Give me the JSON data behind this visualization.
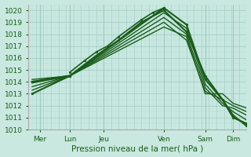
{
  "xlabel": "Pression niveau de la mer( hPa )",
  "ylim": [
    1010,
    1020.5
  ],
  "xlim": [
    0,
    290
  ],
  "yticks": [
    1010,
    1011,
    1012,
    1013,
    1014,
    1015,
    1016,
    1017,
    1018,
    1019,
    1020
  ],
  "xtick_labels": [
    "Mer",
    "Lun",
    "Jeu",
    "Ven",
    "Sam",
    "Dim"
  ],
  "xtick_positions": [
    15,
    55,
    100,
    180,
    235,
    272
  ],
  "day_vlines": [
    15,
    55,
    100,
    180,
    235,
    272
  ],
  "bg_color": "#c8e8e0",
  "grid_major_color": "#a0c8c0",
  "grid_minor_color": "#b8ddd8",
  "line_color_dark": "#1a5c1a",
  "line_color_med": "#2e7a2e",
  "figsize": [
    3.2,
    2.0
  ],
  "dpi": 100,
  "lines": [
    {
      "x": [
        5,
        55,
        180,
        210,
        235,
        258,
        272,
        290
      ],
      "y": [
        1013.0,
        1014.5,
        1020.2,
        1018.8,
        1014.2,
        1012.5,
        1011.2,
        1010.3
      ],
      "lw": 1.5,
      "marker": true
    },
    {
      "x": [
        5,
        55,
        180,
        210,
        235,
        258,
        272,
        290
      ],
      "y": [
        1013.3,
        1014.5,
        1019.8,
        1018.5,
        1013.8,
        1012.2,
        1011.5,
        1010.8
      ],
      "lw": 1.0,
      "marker": false
    },
    {
      "x": [
        5,
        55,
        180,
        210,
        235,
        258,
        272,
        290
      ],
      "y": [
        1013.6,
        1014.5,
        1019.4,
        1018.0,
        1013.5,
        1012.0,
        1011.8,
        1011.2
      ],
      "lw": 1.0,
      "marker": false
    },
    {
      "x": [
        5,
        55,
        180,
        210,
        235,
        258,
        272,
        290
      ],
      "y": [
        1013.9,
        1014.5,
        1019.0,
        1017.5,
        1013.2,
        1012.5,
        1012.0,
        1011.5
      ],
      "lw": 1.0,
      "marker": false
    },
    {
      "x": [
        5,
        55,
        180,
        210,
        235,
        258,
        272,
        290
      ],
      "y": [
        1014.2,
        1014.5,
        1018.6,
        1017.8,
        1013.0,
        1013.0,
        1012.2,
        1011.8
      ],
      "lw": 1.0,
      "marker": false
    },
    {
      "x": [
        55,
        90,
        120,
        150,
        180,
        210,
        235,
        258,
        272,
        290
      ],
      "y": [
        1014.5,
        1016.2,
        1017.5,
        1019.0,
        1020.0,
        1018.2,
        1014.5,
        1012.5,
        1011.0,
        1010.5
      ],
      "lw": 1.5,
      "marker": true
    },
    {
      "x": [
        55,
        75,
        90,
        105,
        120,
        150,
        165,
        180
      ],
      "y": [
        1014.8,
        1015.8,
        1016.5,
        1017.0,
        1017.8,
        1019.2,
        1019.8,
        1020.2
      ],
      "lw": 1.2,
      "marker": true
    },
    {
      "x": [
        5,
        55
      ],
      "y": [
        1014.0,
        1014.5
      ],
      "lw": 2.0,
      "marker": true
    }
  ]
}
